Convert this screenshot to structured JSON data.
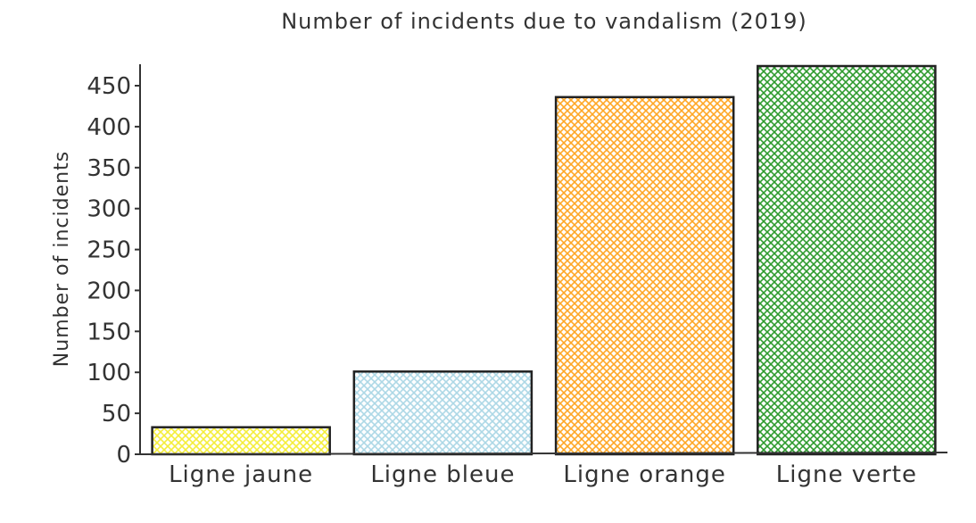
{
  "chart_data": {
    "type": "bar",
    "title": "Number of incidents due to vandalism (2019)",
    "xlabel": "",
    "ylabel": "Number of incidents",
    "categories": [
      "Ligne jaune",
      "Ligne bleue",
      "Ligne orange",
      "Ligne verte"
    ],
    "values": [
      33,
      101,
      436,
      474
    ],
    "colors": [
      "#f5ee3a",
      "#add8e6",
      "#ffa726",
      "#2e9b2e"
    ],
    "ylim": [
      0,
      475
    ],
    "yticks": [
      0,
      50,
      100,
      150,
      200,
      250,
      300,
      350,
      400,
      450
    ],
    "grid": false,
    "style": "hand-drawn hatched"
  }
}
